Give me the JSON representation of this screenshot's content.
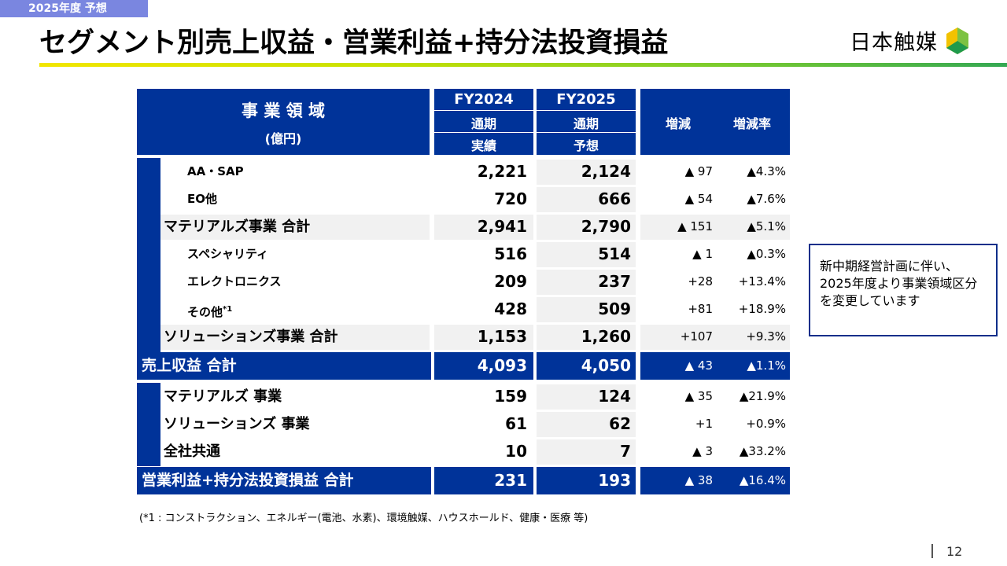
{
  "header": {
    "tag": "2025年度 予想",
    "title": "セグメント別売上収益・営業利益+持分法投資損益",
    "company": "日本触媒"
  },
  "colors": {
    "navy": "#003399",
    "accent_start": "#f2e600",
    "accent_end": "#34a853"
  },
  "table": {
    "head": {
      "segment_label": "事 業 領 域",
      "unit": "(億円)",
      "fy2024": "FY2024",
      "fy2024_sub1": "通期",
      "fy2024_sub2": "実績",
      "fy2025": "FY2025",
      "fy2025_sub1": "通期",
      "fy2025_sub2": "予想",
      "change": "増減",
      "change_rate": "増減率"
    },
    "rows": [
      {
        "label": "AA・SAP",
        "fy2024": "2,221",
        "fy2025": "2,124",
        "change": "▲ 97",
        "rate": "▲4.3%"
      },
      {
        "label": "EO他",
        "fy2024": "720",
        "fy2025": "666",
        "change": "▲ 54",
        "rate": "▲7.6%"
      },
      {
        "label": "マテリアルズ事業 合計",
        "fy2024": "2,941",
        "fy2025": "2,790",
        "change": "▲ 151",
        "rate": "▲5.1%"
      },
      {
        "label": "スペシャリティ",
        "fy2024": "516",
        "fy2025": "514",
        "change": "▲ 1",
        "rate": "▲0.3%"
      },
      {
        "label": "エレクトロニクス",
        "fy2024": "209",
        "fy2025": "237",
        "change": "+28",
        "rate": "+13.4%"
      },
      {
        "label": "その他",
        "sup": "*1",
        "fy2024": "428",
        "fy2025": "509",
        "change": "+81",
        "rate": "+18.9%"
      },
      {
        "label": "ソリューションズ事業 合計",
        "fy2024": "1,153",
        "fy2025": "1,260",
        "change": "+107",
        "rate": "+9.3%"
      },
      {
        "label": "売上収益 合計",
        "fy2024": "4,093",
        "fy2025": "4,050",
        "change": "▲ 43",
        "rate": "▲1.1%"
      },
      {
        "label": "マテリアルズ 事業",
        "fy2024": "159",
        "fy2025": "124",
        "change": "▲ 35",
        "rate": "▲21.9%"
      },
      {
        "label": "ソリューションズ 事業",
        "fy2024": "61",
        "fy2025": "62",
        "change": "+1",
        "rate": "+0.9%"
      },
      {
        "label": "全社共通",
        "fy2024": "10",
        "fy2025": "7",
        "change": "▲ 3",
        "rate": "▲33.2%"
      },
      {
        "label": "営業利益+持分法投資損益 合計",
        "fy2024": "231",
        "fy2025": "193",
        "change": "▲ 38",
        "rate": "▲16.4%"
      }
    ]
  },
  "note": "新中期経営計画に伴い、2025年度より事業領域区分を変更しています",
  "footnote": "(*1 : コンストラクション、エネルギー(電池、水素)、環境触媒、ハウスホールド、健康・医療 等)",
  "page_number": "12"
}
